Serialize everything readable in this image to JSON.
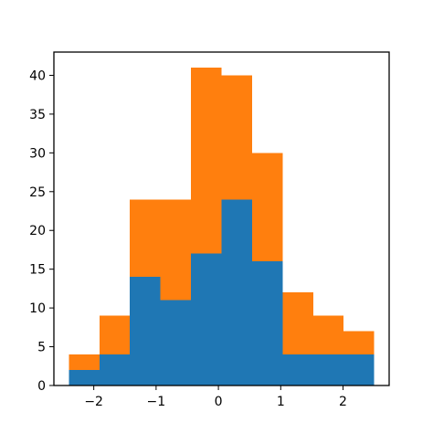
{
  "chart_data": {
    "type": "bar",
    "stacked": true,
    "bin_edges": [
      -2.4,
      -1.91,
      -1.42,
      -0.93,
      -0.44,
      0.05,
      0.54,
      1.03,
      1.52,
      2.01,
      2.5
    ],
    "series": [
      {
        "values": [
          2,
          4,
          14,
          11,
          17,
          24,
          16,
          4,
          4,
          4
        ],
        "color": "#1f77b4"
      },
      {
        "values": [
          2,
          5,
          10,
          13,
          24,
          16,
          14,
          8,
          5,
          3
        ],
        "color": "#ff7f0e"
      }
    ],
    "title": "",
    "xlabel": "",
    "ylabel": "",
    "xlim": [
      -2.64,
      2.74
    ],
    "ylim": [
      0,
      43
    ],
    "x_ticks": [
      {
        "value": -2,
        "label": "−2"
      },
      {
        "value": -1,
        "label": "−1"
      },
      {
        "value": 0,
        "label": "0"
      },
      {
        "value": 1,
        "label": "1"
      },
      {
        "value": 2,
        "label": "2"
      }
    ],
    "y_ticks": [
      {
        "value": 0,
        "label": "0"
      },
      {
        "value": 5,
        "label": "5"
      },
      {
        "value": 10,
        "label": "10"
      },
      {
        "value": 15,
        "label": "15"
      },
      {
        "value": 20,
        "label": "20"
      },
      {
        "value": 25,
        "label": "25"
      },
      {
        "value": 30,
        "label": "30"
      },
      {
        "value": 35,
        "label": "35"
      },
      {
        "value": 40,
        "label": "40"
      }
    ],
    "grid": false,
    "legend": "none"
  }
}
